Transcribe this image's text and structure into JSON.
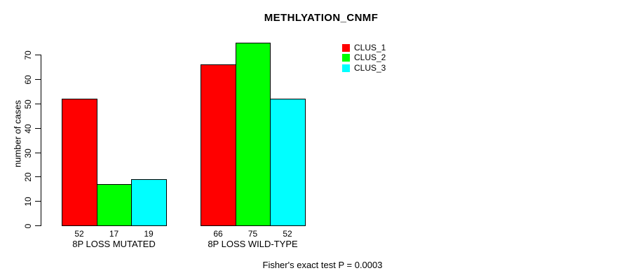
{
  "chart_data": {
    "type": "bar",
    "title": "METHLYATION_CNMF",
    "xlabel": "",
    "ylabel": "number of cases",
    "footnote": "Fisher's exact test P = 0.0003",
    "categories": [
      "8P LOSS MUTATED",
      "8P LOSS WILD-TYPE"
    ],
    "series": [
      {
        "name": "CLUS_1",
        "color": "#ff0000",
        "values": [
          52,
          66
        ]
      },
      {
        "name": "CLUS_2",
        "color": "#00ff00",
        "values": [
          17,
          75
        ]
      },
      {
        "name": "CLUS_3",
        "color": "#00ffff",
        "values": [
          19,
          52
        ]
      }
    ],
    "bar_value_labels": [
      [
        52,
        17,
        19
      ],
      [
        66,
        75,
        52
      ]
    ],
    "y_ticks": [
      0,
      10,
      20,
      30,
      40,
      50,
      60,
      70
    ],
    "ylim": [
      0,
      70
    ],
    "grid": false,
    "legend_position": "top-right",
    "bar_border_color": "#000000",
    "background_color": "#ffffff",
    "text_color": "#000000"
  }
}
